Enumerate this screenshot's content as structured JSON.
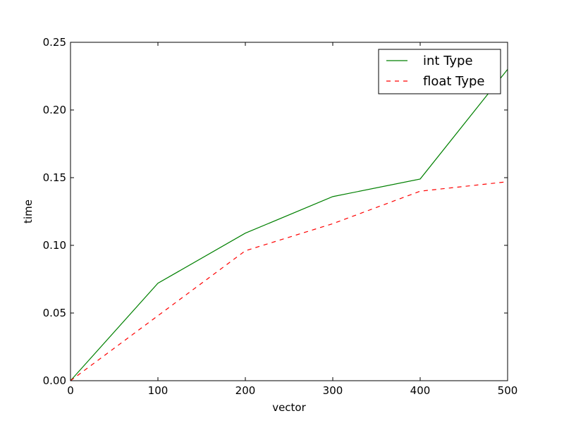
{
  "chart_data": {
    "type": "line",
    "xlabel": "vector",
    "ylabel": "time",
    "xlim": [
      0,
      500
    ],
    "ylim": [
      0.0,
      0.25
    ],
    "xticks": [
      0,
      100,
      200,
      300,
      400,
      500
    ],
    "xtick_labels": [
      "0",
      "100",
      "200",
      "300",
      "400",
      "500"
    ],
    "yticks": [
      0.0,
      0.05,
      0.1,
      0.15,
      0.2,
      0.25
    ],
    "ytick_labels": [
      "0.00",
      "0.05",
      "0.10",
      "0.15",
      "0.20",
      "0.25"
    ],
    "grid": false,
    "legend_position": "top-right",
    "x": [
      0,
      100,
      200,
      300,
      400,
      500
    ],
    "series": [
      {
        "name": "int Type",
        "values": [
          0.0,
          0.072,
          0.109,
          0.136,
          0.149,
          0.23
        ],
        "color": "#008000",
        "line_style": "solid"
      },
      {
        "name": "float Type",
        "values": [
          0.0,
          0.048,
          0.096,
          0.116,
          0.14,
          0.147
        ],
        "color": "#ff0000",
        "line_style": "dashed"
      }
    ]
  }
}
